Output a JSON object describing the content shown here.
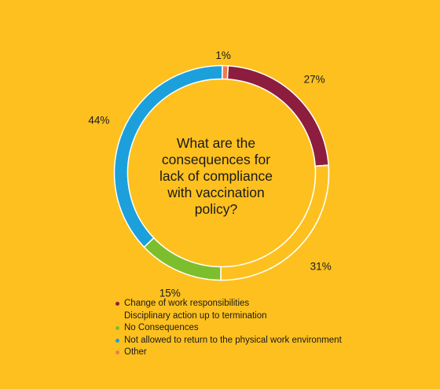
{
  "chart_data": {
    "type": "donut",
    "title": "What are the consequences for lack of compliance with vaccination policy?",
    "slices": [
      {
        "label": "Change of work responsibilities",
        "value": 27,
        "display": "27%",
        "color": "#8C1D3F",
        "style": "filled"
      },
      {
        "label": "Disciplinary action up to termination",
        "value": 31,
        "display": "31%",
        "color": "#FDC01F",
        "style": "outline"
      },
      {
        "label": "No Consequences",
        "value": 15,
        "display": "15%",
        "color": "#7DBE2D",
        "style": "filled"
      },
      {
        "label": "Not allowed to return to the physical work environment",
        "value": 44,
        "display": "44%",
        "color": "#1CA0DC",
        "style": "filled"
      },
      {
        "label": "Other",
        "value": 1,
        "display": "1%",
        "color": "#F07A4B",
        "style": "filled"
      }
    ],
    "legend": {
      "position": "bottom-left"
    }
  }
}
